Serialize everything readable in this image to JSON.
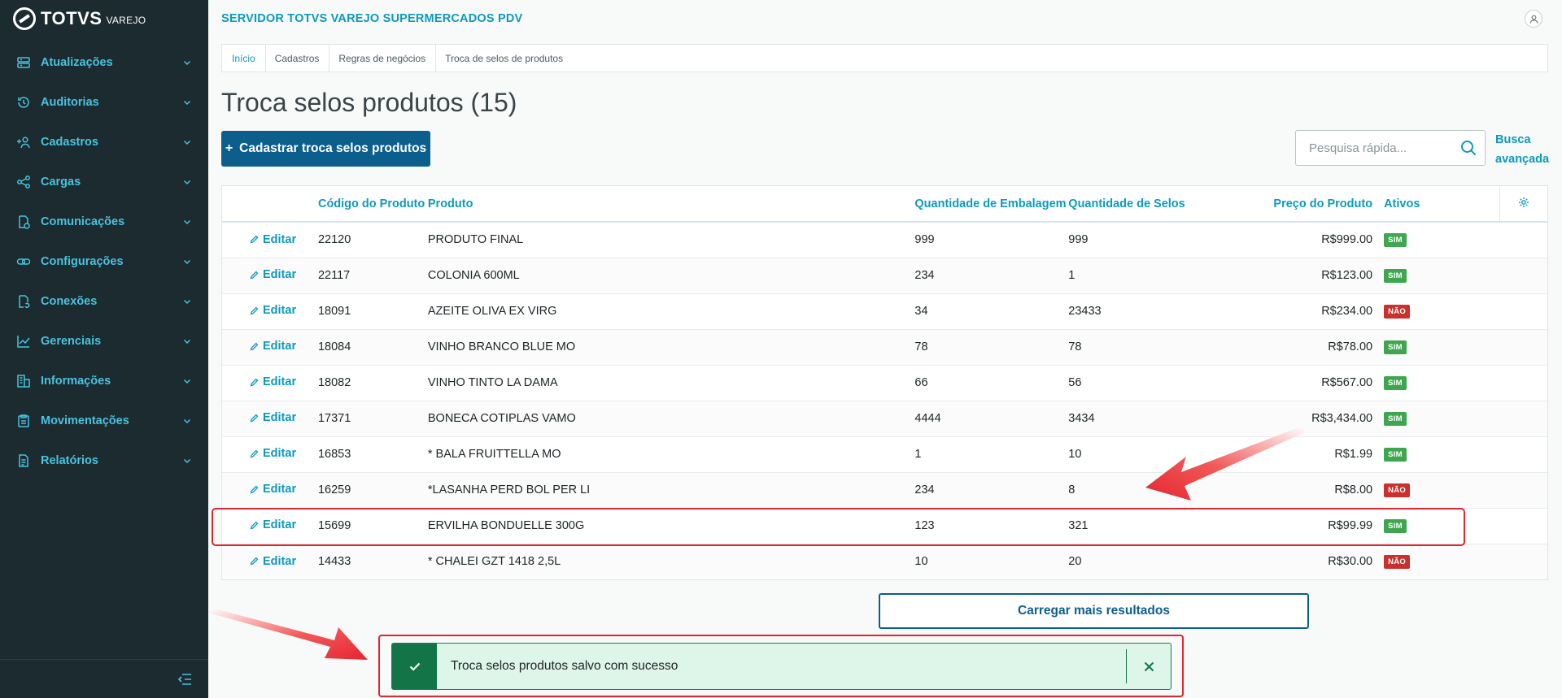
{
  "brand": {
    "name": "TOTVS",
    "sub": "VAREJO"
  },
  "sidebar": {
    "items": [
      {
        "label": "Atualizações",
        "icon": "server-icon"
      },
      {
        "label": "Auditorias",
        "icon": "history-icon"
      },
      {
        "label": "Cadastros",
        "icon": "add-user-icon"
      },
      {
        "label": "Cargas",
        "icon": "share-icon"
      },
      {
        "label": "Comunicações",
        "icon": "document-sync-icon"
      },
      {
        "label": "Configurações",
        "icon": "link-icon"
      },
      {
        "label": "Conexões",
        "icon": "document-refresh-icon"
      },
      {
        "label": "Gerenciais",
        "icon": "chart-icon"
      },
      {
        "label": "Informações",
        "icon": "building-icon"
      },
      {
        "label": "Movimentações",
        "icon": "clipboard-icon"
      },
      {
        "label": "Relatórios",
        "icon": "document-icon"
      }
    ]
  },
  "header": {
    "server_title": "SERVIDOR TOTVS VAREJO SUPERMERCADOS PDV"
  },
  "breadcrumb": [
    "Início",
    "Cadastros",
    "Regras de negócios",
    "Troca de selos de produtos"
  ],
  "page": {
    "title": "Troca selos produtos (15)",
    "add_button": "Cadastrar troca selos produtos",
    "add_symbol": "+",
    "search_placeholder": "Pesquisa rápida...",
    "advanced_search_line1": "Busca",
    "advanced_search_line2": "avançada"
  },
  "table": {
    "headers": [
      "Código do Produto",
      "Produto",
      "Quantidade de Embalagem",
      "Quantidade de Selos",
      "Preço do Produto",
      "Ativos"
    ],
    "edit_label": "Editar",
    "rows": [
      {
        "code": "22120",
        "product": "PRODUTO FINAL",
        "qty_pack": "999",
        "qty_seals": "999",
        "price": "R$999.00",
        "active": "SIM"
      },
      {
        "code": "22117",
        "product": "COLONIA 600ML",
        "qty_pack": "234",
        "qty_seals": "1",
        "price": "R$123.00",
        "active": "SIM"
      },
      {
        "code": "18091",
        "product": "AZEITE OLIVA EX VIRG",
        "qty_pack": "34",
        "qty_seals": "23433",
        "price": "R$234.00",
        "active": "NÃO"
      },
      {
        "code": "18084",
        "product": "VINHO BRANCO BLUE MO",
        "qty_pack": "78",
        "qty_seals": "78",
        "price": "R$78.00",
        "active": "SIM"
      },
      {
        "code": "18082",
        "product": "VINHO TINTO LA DAMA",
        "qty_pack": "66",
        "qty_seals": "56",
        "price": "R$567.00",
        "active": "SIM"
      },
      {
        "code": "17371",
        "product": "BONECA COTIPLAS VAMO",
        "qty_pack": "4444",
        "qty_seals": "3434",
        "price": "R$3,434.00",
        "active": "SIM"
      },
      {
        "code": "16853",
        "product": "* BALA FRUITTELLA MO",
        "qty_pack": "1",
        "qty_seals": "10",
        "price": "R$1.99",
        "active": "SIM"
      },
      {
        "code": "16259",
        "product": "*LASANHA PERD BOL PER LI",
        "qty_pack": "234",
        "qty_seals": "8",
        "price": "R$8.00",
        "active": "NÃO"
      },
      {
        "code": "15699",
        "product": "ERVILHA BONDUELLE 300G",
        "qty_pack": "123",
        "qty_seals": "321",
        "price": "R$99.99",
        "active": "SIM"
      },
      {
        "code": "14433",
        "product": "* CHALEI GZT 1418 2,5L",
        "qty_pack": "10",
        "qty_seals": "20",
        "price": "R$30.00",
        "active": "NÃO"
      }
    ]
  },
  "load_more": "Carregar mais resultados",
  "toast": {
    "message": "Troca selos produtos salvo com sucesso"
  },
  "colors": {
    "accent": "#0c9abe",
    "primary": "#0c5e8d",
    "sidebar": "#1c2b2f",
    "success": "#137547",
    "annotation": "#e3262f"
  }
}
